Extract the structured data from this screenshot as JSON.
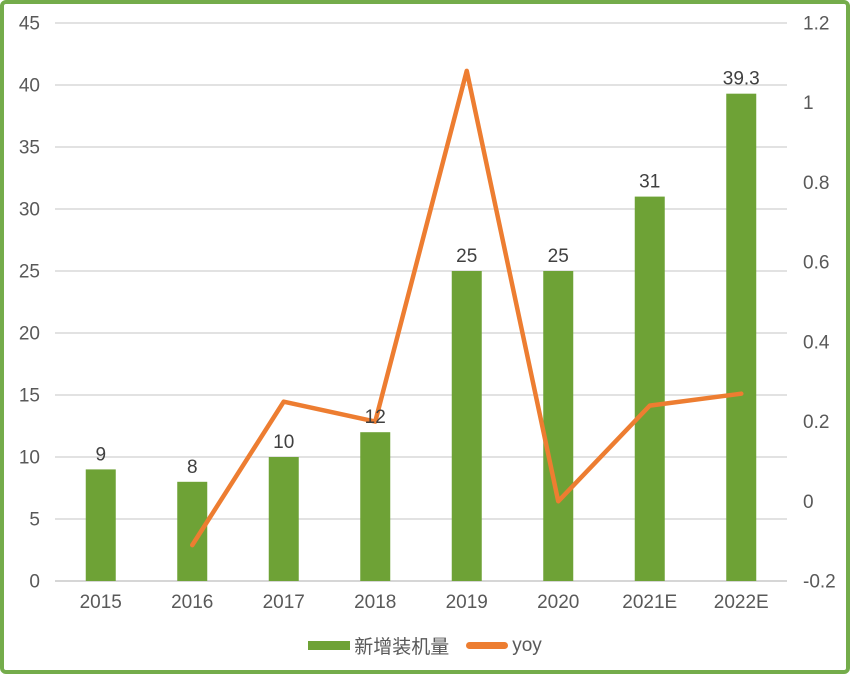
{
  "colors": {
    "bar": "#6EA236",
    "line": "#ED7D31",
    "border": "#74AC4B",
    "grid": "#D9D9D9",
    "axis_line": "#C9C9C9",
    "tick_text": "#595959",
    "value_text": "#404040",
    "background": "#FFFFFF"
  },
  "chart_data": {
    "type": "combo-bar-line",
    "title": "",
    "categories": [
      "2015",
      "2016",
      "2017",
      "2018",
      "2019",
      "2020",
      "2021E",
      "2022E"
    ],
    "series": [
      {
        "name": "新增装机量",
        "type": "bar",
        "axis": "left",
        "color": "#6EA236",
        "values": [
          9,
          8,
          10,
          12,
          25,
          25,
          31,
          39.3
        ],
        "value_labels": [
          "9",
          "8",
          "10",
          "12",
          "25",
          "25",
          "31",
          "39.3"
        ]
      },
      {
        "name": "yoy",
        "type": "line",
        "axis": "right",
        "color": "#ED7D31",
        "values": [
          null,
          -0.11,
          0.25,
          0.2,
          1.08,
          0,
          0.24,
          0.27
        ]
      }
    ],
    "left_axis": {
      "min": 0,
      "max": 45,
      "step": 5,
      "tick_labels": [
        "0",
        "5",
        "10",
        "15",
        "20",
        "25",
        "30",
        "35",
        "40",
        "45"
      ]
    },
    "right_axis": {
      "min": -0.2,
      "max": 1.2,
      "step": 0.2,
      "tick_labels": [
        "-0.2",
        "0",
        "0.2",
        "0.4",
        "0.6",
        "0.8",
        "1",
        "1.2"
      ]
    },
    "grid": true,
    "legend_position": "bottom"
  }
}
